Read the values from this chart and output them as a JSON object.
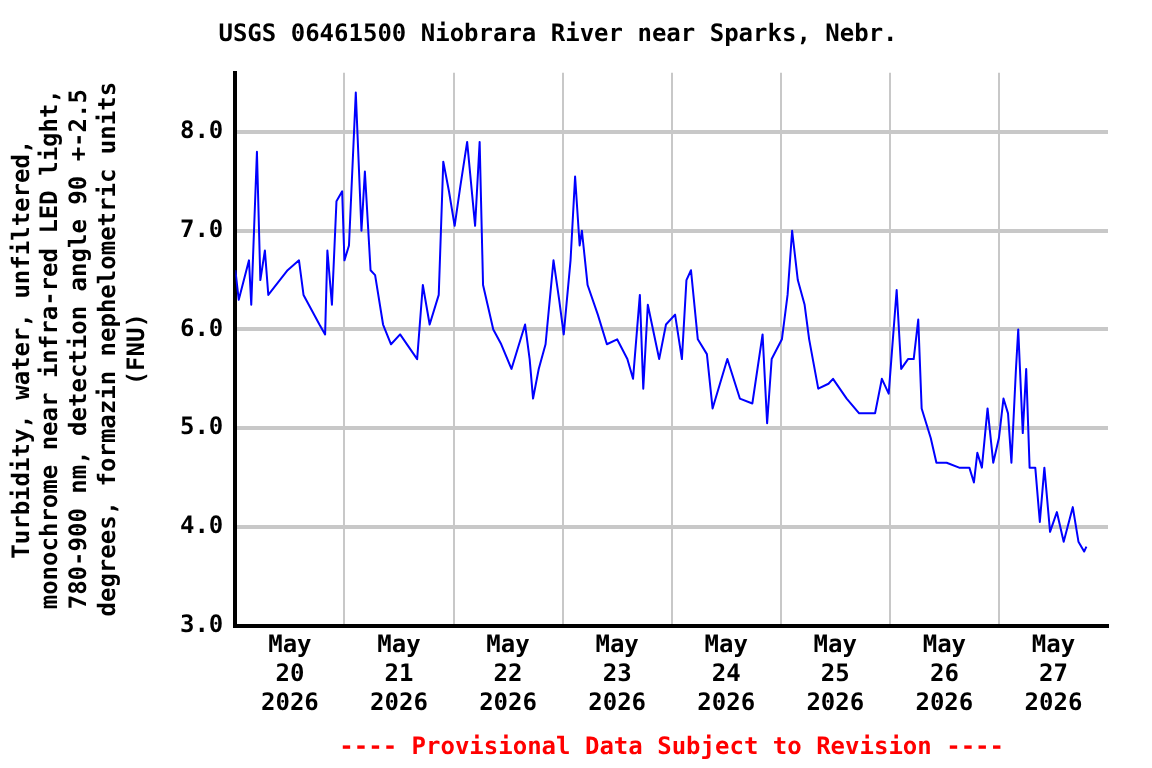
{
  "chart_data": {
    "type": "line",
    "title": "USGS 06461500 Niobrara River near Sparks, Nebr.",
    "ylabel": "Turbidity, water, unfiltered,\nmonochrome near infra-red LED light,\n780-900 nm, detection angle 90 +-2.5\ndegrees, formazin nephelometric units\n(FNU)",
    "annotations": [
      "---- Provisional Data Subject to Revision ----"
    ],
    "series": [
      {
        "color": "#0000ff",
        "x": [
          "2026-05-20T00:00",
          "2026-05-20T00:45",
          "2026-05-20T03:00",
          "2026-05-20T03:30",
          "2026-05-20T04:45",
          "2026-05-20T05:30",
          "2026-05-20T06:30",
          "2026-05-20T07:15",
          "2026-05-20T11:30",
          "2026-05-20T14:00",
          "2026-05-20T15:00",
          "2026-05-20T18:30",
          "2026-05-20T19:45",
          "2026-05-20T20:15",
          "2026-05-20T21:15",
          "2026-05-20T22:15",
          "2026-05-20T23:30",
          "2026-05-21T00:00",
          "2026-05-21T01:00",
          "2026-05-21T02:30",
          "2026-05-21T03:45",
          "2026-05-21T04:30",
          "2026-05-21T05:45",
          "2026-05-21T06:45",
          "2026-05-21T08:30",
          "2026-05-21T10:15",
          "2026-05-21T12:15",
          "2026-05-21T16:00",
          "2026-05-21T17:15",
          "2026-05-21T18:45",
          "2026-05-21T20:45",
          "2026-05-21T21:45",
          "2026-05-21T23:00",
          "2026-05-22T00:15",
          "2026-05-22T01:30",
          "2026-05-22T03:00",
          "2026-05-22T04:45",
          "2026-05-22T05:45",
          "2026-05-22T06:30",
          "2026-05-22T07:30",
          "2026-05-22T08:45",
          "2026-05-22T10:30",
          "2026-05-22T12:45",
          "2026-05-22T15:45",
          "2026-05-22T16:45",
          "2026-05-22T17:30",
          "2026-05-22T18:45",
          "2026-05-22T20:15",
          "2026-05-22T22:00",
          "2026-05-22T23:15",
          "2026-05-23T00:15",
          "2026-05-23T01:45",
          "2026-05-23T02:45",
          "2026-05-23T03:45",
          "2026-05-23T04:15",
          "2026-05-23T05:30",
          "2026-05-23T07:45",
          "2026-05-23T09:45",
          "2026-05-23T12:00",
          "2026-05-23T14:15",
          "2026-05-23T15:30",
          "2026-05-23T17:00",
          "2026-05-23T17:45",
          "2026-05-23T18:45",
          "2026-05-23T21:15",
          "2026-05-23T22:45",
          "2026-05-24T00:45",
          "2026-05-24T02:15",
          "2026-05-24T03:15",
          "2026-05-24T04:15",
          "2026-05-24T05:45",
          "2026-05-24T07:45",
          "2026-05-24T09:00",
          "2026-05-24T12:15",
          "2026-05-24T15:00",
          "2026-05-24T17:45",
          "2026-05-24T20:00",
          "2026-05-24T21:00",
          "2026-05-24T22:00",
          "2026-05-25T00:15",
          "2026-05-25T01:30",
          "2026-05-25T02:30",
          "2026-05-25T03:45",
          "2026-05-25T05:15",
          "2026-05-25T06:15",
          "2026-05-25T08:15",
          "2026-05-25T10:30",
          "2026-05-25T11:30",
          "2026-05-25T14:30",
          "2026-05-25T17:15",
          "2026-05-25T20:45",
          "2026-05-25T22:15",
          "2026-05-25T23:45",
          "2026-05-26T01:30",
          "2026-05-26T02:30",
          "2026-05-26T04:00",
          "2026-05-26T05:15",
          "2026-05-26T06:15",
          "2026-05-26T07:00",
          "2026-05-26T09:00",
          "2026-05-26T10:15",
          "2026-05-26T12:30",
          "2026-05-26T15:15",
          "2026-05-26T17:30",
          "2026-05-26T18:30",
          "2026-05-26T19:15",
          "2026-05-26T20:15",
          "2026-05-26T21:30",
          "2026-05-26T22:45",
          "2026-05-27T00:00",
          "2026-05-27T01:00",
          "2026-05-27T02:00",
          "2026-05-27T02:45",
          "2026-05-27T03:45",
          "2026-05-27T04:15",
          "2026-05-27T05:15",
          "2026-05-27T06:00",
          "2026-05-27T06:45",
          "2026-05-27T08:00",
          "2026-05-27T09:00",
          "2026-05-27T10:00",
          "2026-05-27T11:15",
          "2026-05-27T12:45",
          "2026-05-27T14:15",
          "2026-05-27T16:15",
          "2026-05-27T17:30",
          "2026-05-27T18:45",
          "2026-05-27T19:15"
        ],
        "values": [
          6.6,
          6.3,
          6.7,
          6.25,
          7.8,
          6.5,
          6.8,
          6.35,
          6.6,
          6.7,
          6.35,
          6.05,
          5.95,
          6.8,
          6.25,
          7.3,
          7.4,
          6.7,
          6.85,
          8.4,
          7.0,
          7.6,
          6.6,
          6.55,
          6.05,
          5.85,
          5.95,
          5.7,
          6.45,
          6.05,
          6.35,
          7.7,
          7.4,
          7.05,
          7.45,
          7.9,
          7.05,
          7.9,
          6.45,
          6.25,
          6.0,
          5.85,
          5.6,
          6.05,
          5.7,
          5.3,
          5.6,
          5.85,
          6.7,
          6.3,
          5.95,
          6.7,
          7.55,
          6.85,
          7.0,
          6.45,
          6.15,
          5.85,
          5.9,
          5.7,
          5.5,
          6.35,
          5.4,
          6.25,
          5.7,
          6.05,
          6.15,
          5.7,
          6.5,
          6.6,
          5.9,
          5.75,
          5.2,
          5.7,
          5.3,
          5.25,
          5.95,
          5.05,
          5.7,
          5.9,
          6.35,
          7.0,
          6.5,
          6.25,
          5.9,
          5.4,
          5.45,
          5.5,
          5.3,
          5.15,
          5.15,
          5.5,
          5.35,
          6.4,
          5.6,
          5.7,
          5.7,
          6.1,
          5.2,
          4.9,
          4.65,
          4.65,
          4.6,
          4.6,
          4.45,
          4.75,
          4.6,
          5.2,
          4.65,
          4.9,
          5.3,
          5.15,
          4.65,
          5.6,
          6.0,
          4.95,
          5.6,
          4.6,
          4.6,
          4.05,
          4.6,
          3.95,
          4.15,
          3.85,
          4.2,
          3.85,
          3.75,
          3.8
        ]
      }
    ],
    "xlim": [
      "2026-05-20T00:00",
      "2026-05-28T00:00"
    ],
    "xticks": [
      {
        "value": "2026-05-20T12:00",
        "label": "May 20 2026"
      },
      {
        "value": "2026-05-21T00:00",
        "label": null
      },
      {
        "value": "2026-05-21T12:00",
        "label": "May 21 2026"
      },
      {
        "value": "2026-05-22T00:00",
        "label": null
      },
      {
        "value": "2026-05-22T12:00",
        "label": "May 22 2026"
      },
      {
        "value": "2026-05-23T00:00",
        "label": null
      },
      {
        "value": "2026-05-23T12:00",
        "label": "May 23 2026"
      },
      {
        "value": "2026-05-24T00:00",
        "label": null
      },
      {
        "value": "2026-05-24T12:00",
        "label": "May 24 2026"
      },
      {
        "value": "2026-05-25T00:00",
        "label": null
      },
      {
        "value": "2026-05-25T12:00",
        "label": "May 25 2026"
      },
      {
        "value": "2026-05-26T00:00",
        "label": null
      },
      {
        "value": "2026-05-26T12:00",
        "label": "May 26 2026"
      },
      {
        "value": "2026-05-27T00:00",
        "label": null
      },
      {
        "value": "2026-05-27T12:00",
        "label": "May 27 2026"
      }
    ],
    "ylim": [
      3.0,
      8.6
    ],
    "yticks": [
      {
        "value": 3,
        "label": "3.0"
      },
      {
        "value": 4,
        "label": "4.0"
      },
      {
        "value": 5,
        "label": "5.0"
      },
      {
        "value": 6,
        "label": "6.0"
      },
      {
        "value": 7,
        "label": "7.0"
      },
      {
        "value": 8,
        "label": "8.0"
      }
    ],
    "grid": true,
    "legend": false,
    "marker": "none",
    "line_style": "solid"
  }
}
